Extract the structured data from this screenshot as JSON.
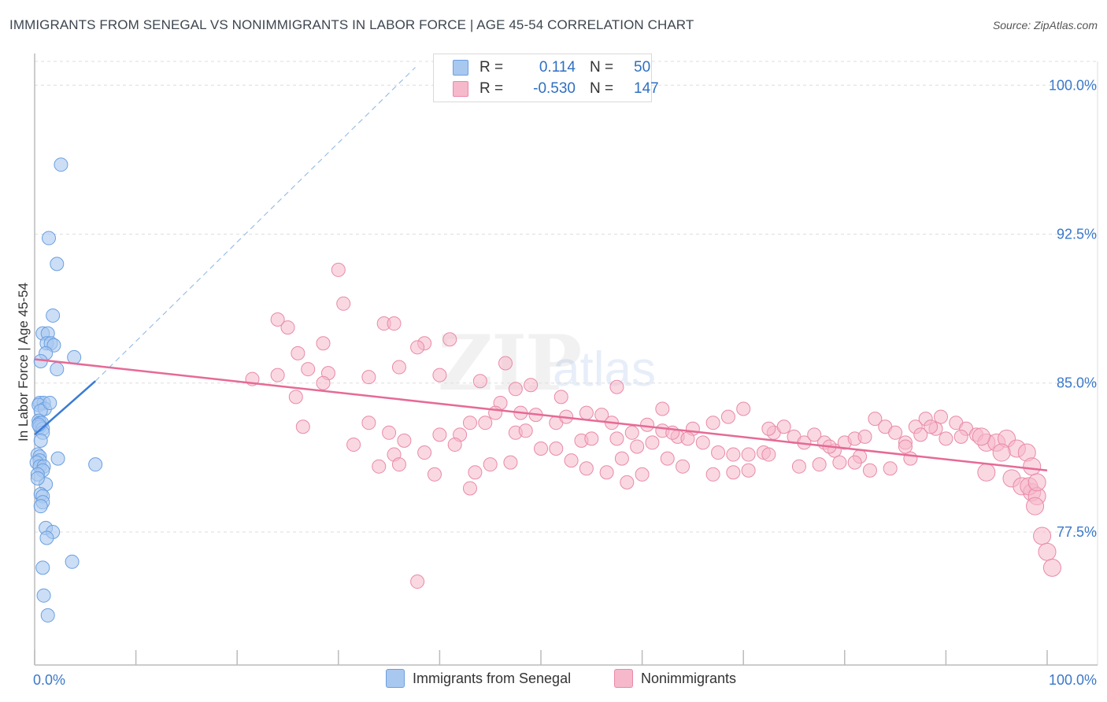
{
  "header": {
    "title": "IMMIGRANTS FROM SENEGAL VS NONIMMIGRANTS IN LABOR FORCE | AGE 45-54 CORRELATION CHART",
    "source": "Source: ZipAtlas.com"
  },
  "watermark": {
    "zip": "ZIP",
    "atlas": "atlas"
  },
  "legend": {
    "rows": [
      {
        "r_label": "R =",
        "r_value": "0.114",
        "n_label": "N =",
        "n_value": "50"
      },
      {
        "r_label": "R =",
        "r_value": "-0.530",
        "n_label": "N =",
        "n_value": "147"
      }
    ]
  },
  "bottom_legend": {
    "series1": "Immigrants from Senegal",
    "series2": "Nonimmigrants"
  },
  "colors": {
    "blue_fill": "#a9c8f0",
    "blue_stroke": "#6a9fe0",
    "blue_line": "#3a7bd5",
    "pink_fill": "#f6b8cb",
    "pink_stroke": "#e98aa7",
    "pink_line": "#e66a96",
    "grid": "#dddddd",
    "tick_text": "#3a78c9"
  },
  "chart_data": {
    "type": "scatter",
    "title": "IMMIGRANTS FROM SENEGAL VS NONIMMIGRANTS IN LABOR FORCE | AGE 45-54 CORRELATION CHART",
    "xlabel": "",
    "ylabel": "In Labor Force | Age 45-54",
    "xlim": [
      0,
      100
    ],
    "ylim": [
      70.8,
      101.2
    ],
    "x_tick_labels": [
      "0.0%",
      "100.0%"
    ],
    "y_ticks": [
      77.5,
      85.0,
      92.5,
      100.0
    ],
    "y_tick_labels": [
      "77.5%",
      "85.0%",
      "92.5%",
      "100.0%"
    ],
    "grid": true,
    "legend_position": "top-center",
    "series": [
      {
        "name": "Immigrants from Senegal",
        "color": "blue",
        "trend": {
          "x": [
            0.0,
            6.0
          ],
          "y": [
            82.4,
            85.1
          ],
          "dashed_extension": {
            "x": [
              6.0,
              37.6
            ],
            "y": [
              85.1,
              100.9
            ]
          }
        },
        "points": [
          [
            2.6,
            96.0
          ],
          [
            1.4,
            92.3
          ],
          [
            2.2,
            91.0
          ],
          [
            1.8,
            88.4
          ],
          [
            0.8,
            87.5
          ],
          [
            1.3,
            87.5
          ],
          [
            1.2,
            87.0
          ],
          [
            1.6,
            87.0
          ],
          [
            1.9,
            86.9
          ],
          [
            1.1,
            86.5
          ],
          [
            3.9,
            86.3
          ],
          [
            0.6,
            86.1
          ],
          [
            2.2,
            85.7
          ],
          [
            0.5,
            84.0
          ],
          [
            0.9,
            84.0
          ],
          [
            0.4,
            83.9
          ],
          [
            1.0,
            83.7
          ],
          [
            0.6,
            83.6
          ],
          [
            0.4,
            83.1
          ],
          [
            0.5,
            83.0
          ],
          [
            0.7,
            83.0
          ],
          [
            0.5,
            82.8
          ],
          [
            0.8,
            82.7
          ],
          [
            0.8,
            82.5
          ],
          [
            0.3,
            81.4
          ],
          [
            0.5,
            81.3
          ],
          [
            0.5,
            81.1
          ],
          [
            2.3,
            81.2
          ],
          [
            6.0,
            80.9
          ],
          [
            0.2,
            81.0
          ],
          [
            0.5,
            80.8
          ],
          [
            0.9,
            80.8
          ],
          [
            0.8,
            80.6
          ],
          [
            0.3,
            80.4
          ],
          [
            1.1,
            79.9
          ],
          [
            0.6,
            79.4
          ],
          [
            0.8,
            79.3
          ],
          [
            0.8,
            79.0
          ],
          [
            0.6,
            78.8
          ],
          [
            1.1,
            77.7
          ],
          [
            1.8,
            77.5
          ],
          [
            1.2,
            77.2
          ],
          [
            3.7,
            76.0
          ],
          [
            0.8,
            75.7
          ],
          [
            0.9,
            74.3
          ],
          [
            1.3,
            73.3
          ],
          [
            0.4,
            82.9
          ],
          [
            0.6,
            82.1
          ],
          [
            0.3,
            80.2
          ],
          [
            1.5,
            84.0
          ]
        ]
      },
      {
        "name": "Nonimmigrants",
        "color": "pink",
        "trend": {
          "x": [
            0.0,
            100.0
          ],
          "y": [
            86.2,
            80.6
          ]
        },
        "points": [
          [
            30.0,
            90.7
          ],
          [
            30.5,
            89.0
          ],
          [
            24.0,
            88.2
          ],
          [
            25.0,
            87.8
          ],
          [
            34.5,
            88.0
          ],
          [
            35.5,
            88.0
          ],
          [
            38.5,
            87.0
          ],
          [
            37.8,
            86.8
          ],
          [
            41.0,
            87.2
          ],
          [
            28.5,
            87.0
          ],
          [
            26.0,
            86.5
          ],
          [
            46.5,
            86.0
          ],
          [
            27.0,
            85.7
          ],
          [
            29.0,
            85.5
          ],
          [
            36.0,
            85.8
          ],
          [
            24.0,
            85.4
          ],
          [
            21.5,
            85.2
          ],
          [
            33.0,
            85.3
          ],
          [
            40.0,
            85.4
          ],
          [
            28.5,
            85.0
          ],
          [
            44.0,
            85.1
          ],
          [
            25.8,
            84.3
          ],
          [
            47.5,
            84.7
          ],
          [
            49.0,
            84.9
          ],
          [
            46.0,
            84.0
          ],
          [
            45.5,
            83.5
          ],
          [
            44.5,
            83.0
          ],
          [
            48.0,
            83.5
          ],
          [
            49.5,
            83.4
          ],
          [
            51.5,
            83.0
          ],
          [
            33.0,
            83.0
          ],
          [
            43.0,
            83.0
          ],
          [
            26.5,
            82.8
          ],
          [
            40.0,
            82.4
          ],
          [
            35.0,
            82.5
          ],
          [
            42.0,
            82.4
          ],
          [
            47.5,
            82.5
          ],
          [
            48.5,
            82.6
          ],
          [
            52.5,
            83.3
          ],
          [
            54.5,
            83.5
          ],
          [
            56.0,
            83.4
          ],
          [
            57.0,
            83.0
          ],
          [
            59.0,
            82.5
          ],
          [
            60.5,
            82.9
          ],
          [
            62.0,
            82.6
          ],
          [
            63.5,
            82.3
          ],
          [
            65.0,
            82.7
          ],
          [
            67.0,
            83.0
          ],
          [
            68.5,
            83.3
          ],
          [
            70.0,
            83.7
          ],
          [
            31.5,
            81.9
          ],
          [
            36.5,
            82.1
          ],
          [
            41.5,
            81.9
          ],
          [
            50.0,
            81.7
          ],
          [
            51.5,
            81.7
          ],
          [
            54.0,
            82.1
          ],
          [
            55.0,
            82.2
          ],
          [
            57.5,
            82.2
          ],
          [
            59.5,
            81.8
          ],
          [
            61.0,
            82.0
          ],
          [
            63.0,
            82.5
          ],
          [
            64.5,
            82.2
          ],
          [
            66.0,
            82.0
          ],
          [
            67.5,
            81.5
          ],
          [
            69.0,
            81.4
          ],
          [
            70.5,
            81.4
          ],
          [
            72.0,
            81.5
          ],
          [
            73.0,
            82.5
          ],
          [
            74.0,
            82.8
          ],
          [
            75.0,
            82.3
          ],
          [
            76.0,
            82.0
          ],
          [
            77.0,
            82.4
          ],
          [
            78.0,
            82.0
          ],
          [
            79.0,
            81.6
          ],
          [
            80.0,
            82.0
          ],
          [
            81.0,
            82.2
          ],
          [
            82.0,
            82.3
          ],
          [
            83.0,
            83.2
          ],
          [
            84.0,
            82.8
          ],
          [
            85.0,
            82.5
          ],
          [
            86.0,
            82.0
          ],
          [
            87.0,
            82.8
          ],
          [
            88.0,
            83.2
          ],
          [
            89.0,
            82.7
          ],
          [
            90.0,
            82.2
          ],
          [
            91.0,
            83.0
          ],
          [
            92.0,
            82.7
          ],
          [
            93.0,
            82.4
          ],
          [
            94.0,
            82.0
          ],
          [
            95.0,
            82.0
          ],
          [
            96.0,
            82.2
          ],
          [
            97.0,
            81.7
          ],
          [
            98.0,
            81.5
          ],
          [
            98.5,
            80.8
          ],
          [
            35.5,
            81.4
          ],
          [
            38.5,
            81.5
          ],
          [
            47.0,
            81.0
          ],
          [
            53.0,
            81.1
          ],
          [
            58.0,
            81.2
          ],
          [
            62.5,
            81.2
          ],
          [
            64.0,
            80.8
          ],
          [
            70.5,
            80.6
          ],
          [
            78.5,
            81.8
          ],
          [
            81.5,
            81.3
          ],
          [
            34.0,
            80.8
          ],
          [
            36.0,
            80.9
          ],
          [
            39.5,
            80.4
          ],
          [
            43.5,
            80.5
          ],
          [
            56.5,
            80.5
          ],
          [
            60.0,
            80.4
          ],
          [
            67.0,
            80.4
          ],
          [
            69.0,
            80.5
          ],
          [
            45.0,
            80.9
          ],
          [
            54.5,
            80.7
          ],
          [
            58.5,
            80.0
          ],
          [
            86.5,
            81.2
          ],
          [
            94.0,
            80.5
          ],
          [
            96.5,
            80.2
          ],
          [
            97.5,
            79.8
          ],
          [
            98.5,
            79.5
          ],
          [
            98.2,
            79.8
          ],
          [
            99.0,
            79.3
          ],
          [
            98.8,
            78.8
          ],
          [
            99.5,
            77.3
          ],
          [
            100.0,
            76.5
          ],
          [
            100.5,
            75.7
          ],
          [
            43.0,
            79.7
          ],
          [
            37.8,
            75.0
          ],
          [
            72.5,
            81.4
          ],
          [
            75.5,
            80.8
          ],
          [
            77.5,
            80.9
          ],
          [
            79.5,
            81.0
          ],
          [
            81.0,
            81.0
          ],
          [
            82.5,
            80.6
          ],
          [
            84.5,
            80.7
          ],
          [
            86.0,
            81.8
          ],
          [
            87.5,
            82.4
          ],
          [
            88.5,
            82.8
          ],
          [
            89.5,
            83.3
          ],
          [
            91.5,
            82.3
          ],
          [
            93.5,
            82.3
          ],
          [
            95.5,
            81.5
          ],
          [
            99.0,
            80.0
          ],
          [
            52.0,
            84.3
          ],
          [
            57.5,
            84.8
          ],
          [
            62.0,
            83.7
          ],
          [
            72.5,
            82.7
          ]
        ]
      }
    ]
  }
}
